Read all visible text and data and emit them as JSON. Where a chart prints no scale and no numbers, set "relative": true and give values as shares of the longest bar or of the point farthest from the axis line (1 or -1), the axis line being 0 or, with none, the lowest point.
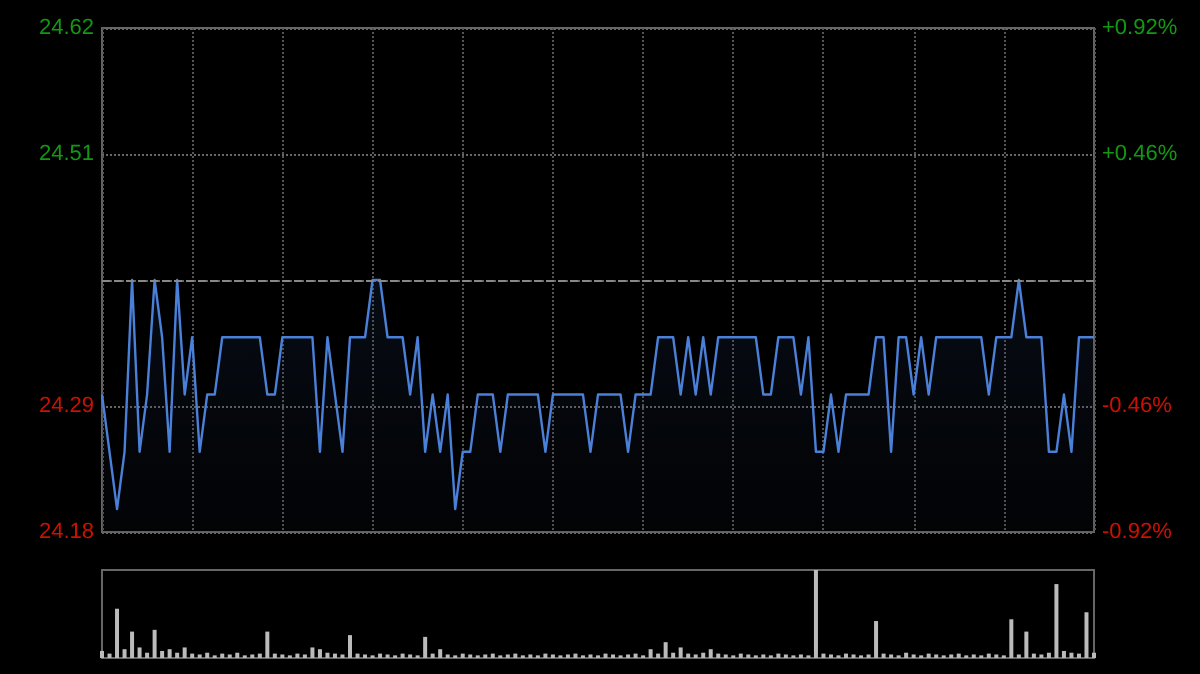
{
  "chart_data": [
    {
      "type": "area",
      "categories": [
        null,
        null,
        null,
        null,
        null,
        null,
        null,
        null,
        null,
        null,
        null,
        null,
        null,
        null,
        null,
        null,
        null,
        null,
        null,
        null,
        null,
        null,
        null,
        null,
        null,
        null,
        null,
        null,
        null,
        null,
        null,
        null,
        null,
        null,
        null,
        null,
        null,
        null,
        null,
        null,
        null,
        null,
        null,
        null,
        null,
        null,
        null,
        null,
        null,
        null,
        null,
        null,
        null,
        null,
        null,
        null,
        null,
        null,
        null,
        null,
        null,
        null,
        null,
        null,
        null,
        null,
        null,
        null,
        null,
        null,
        null,
        null,
        null,
        null,
        null,
        null,
        null,
        null,
        null,
        null,
        null,
        null,
        null,
        null,
        null,
        null,
        null,
        null,
        null,
        null,
        null,
        null,
        null,
        null,
        null,
        null,
        null,
        null,
        null,
        null,
        null,
        null,
        null,
        null,
        null,
        null,
        null,
        null,
        null,
        null,
        null,
        null,
        null,
        null,
        null,
        null,
        null,
        null,
        null,
        null,
        null,
        null,
        null,
        null,
        null,
        null,
        null,
        null,
        null,
        null,
        null,
        null,
        null
      ],
      "series": [
        {
          "color": "#4a80d8",
          "values": [
            24.3,
            24.25,
            24.2,
            24.25,
            24.4,
            24.25,
            24.3,
            24.4,
            24.35,
            24.25,
            24.4,
            24.3,
            24.35,
            24.25,
            24.3,
            24.3,
            24.35,
            24.35,
            24.35,
            24.35,
            24.35,
            24.35,
            24.3,
            24.3,
            24.35,
            24.35,
            24.35,
            24.35,
            24.35,
            24.25,
            24.35,
            24.3,
            24.25,
            24.35,
            24.35,
            24.35,
            24.4,
            24.4,
            24.35,
            24.35,
            24.35,
            24.3,
            24.35,
            24.25,
            24.3,
            24.25,
            24.3,
            24.2,
            24.25,
            24.25,
            24.3,
            24.3,
            24.3,
            24.25,
            24.3,
            24.3,
            24.3,
            24.3,
            24.3,
            24.25,
            24.3,
            24.3,
            24.3,
            24.3,
            24.3,
            24.25,
            24.3,
            24.3,
            24.3,
            24.3,
            24.25,
            24.3,
            24.3,
            24.3,
            24.35,
            24.35,
            24.35,
            24.3,
            24.35,
            24.3,
            24.35,
            24.3,
            24.35,
            24.35,
            24.35,
            24.35,
            24.35,
            24.35,
            24.3,
            24.3,
            24.35,
            24.35,
            24.35,
            24.3,
            24.35,
            24.25,
            24.25,
            24.3,
            24.25,
            24.3,
            24.3,
            24.3,
            24.3,
            24.35,
            24.35,
            24.25,
            24.35,
            24.35,
            24.3,
            24.35,
            24.3,
            24.35,
            24.35,
            24.35,
            24.35,
            24.35,
            24.35,
            24.35,
            24.3,
            24.35,
            24.35,
            24.35,
            24.4,
            24.35,
            24.35,
            24.35,
            24.25,
            24.25,
            24.3,
            24.25,
            24.35,
            24.35,
            24.35
          ]
        }
      ],
      "ylim": [
        24.18,
        24.62
      ],
      "yticks": [
        24.18,
        24.29,
        {
          "value": 24.4,
          "label": null
        },
        24.51,
        24.62
      ],
      "y2lim": [
        -0.92,
        0.92
      ],
      "y2ticks": [
        {
          "value": -0.92,
          "label": "-0.92%"
        },
        {
          "value": -0.46,
          "label": "-0.46%"
        },
        {
          "value": 0,
          "label": null
        },
        {
          "value": 0.46,
          "label": "+0.46%"
        },
        {
          "value": 0.92,
          "label": "+0.92%"
        }
      ],
      "ref_lines": [
        {
          "axis": "y",
          "value": 24.4,
          "line_style": "dashed",
          "color": "#888888"
        }
      ],
      "grid": true,
      "line_style": "solid",
      "marker": "none"
    },
    {
      "type": "bar",
      "relative": true,
      "categories": [
        null,
        null,
        null,
        null,
        null,
        null,
        null,
        null,
        null,
        null,
        null,
        null,
        null,
        null,
        null,
        null,
        null,
        null,
        null,
        null,
        null,
        null,
        null,
        null,
        null,
        null,
        null,
        null,
        null,
        null,
        null,
        null,
        null,
        null,
        null,
        null,
        null,
        null,
        null,
        null,
        null,
        null,
        null,
        null,
        null,
        null,
        null,
        null,
        null,
        null,
        null,
        null,
        null,
        null,
        null,
        null,
        null,
        null,
        null,
        null,
        null,
        null,
        null,
        null,
        null,
        null,
        null,
        null,
        null,
        null,
        null,
        null,
        null,
        null,
        null,
        null,
        null,
        null,
        null,
        null,
        null,
        null,
        null,
        null,
        null,
        null,
        null,
        null,
        null,
        null,
        null,
        null,
        null,
        null,
        null,
        null,
        null,
        null,
        null,
        null,
        null,
        null,
        null,
        null,
        null,
        null,
        null,
        null,
        null,
        null,
        null,
        null,
        null,
        null,
        null,
        null,
        null,
        null,
        null,
        null,
        null,
        null,
        null,
        null,
        null,
        null,
        null,
        null,
        null,
        null,
        null,
        null,
        null
      ],
      "series": [
        {
          "color": "#bbbbbb",
          "values": [
            0.08,
            0.05,
            0.56,
            0.1,
            0.3,
            0.12,
            0.06,
            0.32,
            0.08,
            0.1,
            0.06,
            0.12,
            0.05,
            0.04,
            0.06,
            0.03,
            0.05,
            0.04,
            0.06,
            0.03,
            0.04,
            0.05,
            0.3,
            0.05,
            0.04,
            0.03,
            0.05,
            0.04,
            0.12,
            0.1,
            0.06,
            0.05,
            0.04,
            0.26,
            0.05,
            0.04,
            0.03,
            0.05,
            0.04,
            0.03,
            0.05,
            0.04,
            0.03,
            0.24,
            0.05,
            0.1,
            0.04,
            0.03,
            0.05,
            0.04,
            0.03,
            0.04,
            0.05,
            0.03,
            0.04,
            0.05,
            0.03,
            0.04,
            0.03,
            0.05,
            0.04,
            0.03,
            0.04,
            0.05,
            0.03,
            0.04,
            0.03,
            0.05,
            0.04,
            0.03,
            0.04,
            0.05,
            0.03,
            0.1,
            0.05,
            0.18,
            0.06,
            0.12,
            0.05,
            0.04,
            0.06,
            0.1,
            0.05,
            0.04,
            0.03,
            0.05,
            0.04,
            0.03,
            0.04,
            0.03,
            0.05,
            0.04,
            0.03,
            0.04,
            0.03,
            1,
            0.05,
            0.04,
            0.03,
            0.05,
            0.04,
            0.03,
            0.04,
            0.42,
            0.05,
            0.04,
            0.03,
            0.06,
            0.04,
            0.03,
            0.05,
            0.04,
            0.03,
            0.04,
            0.05,
            0.03,
            0.04,
            0.03,
            0.05,
            0.04,
            0.03,
            0.44,
            0.04,
            0.3,
            0.05,
            0.04,
            0.06,
            0.84,
            0.08,
            0.06,
            0.05,
            0.52,
            0.06
          ]
        }
      ]
    }
  ]
}
